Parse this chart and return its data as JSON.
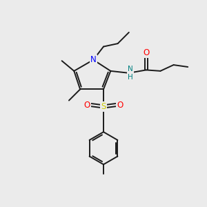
{
  "background_color": "#ebebeb",
  "bond_color": "#1a1a1a",
  "N_color": "#0000ff",
  "O_color": "#ff0000",
  "S_color": "#cccc00",
  "NH_color": "#008080",
  "figsize": [
    3.0,
    3.0
  ],
  "dpi": 100,
  "xlim": [
    0,
    10
  ],
  "ylim": [
    0,
    10
  ]
}
